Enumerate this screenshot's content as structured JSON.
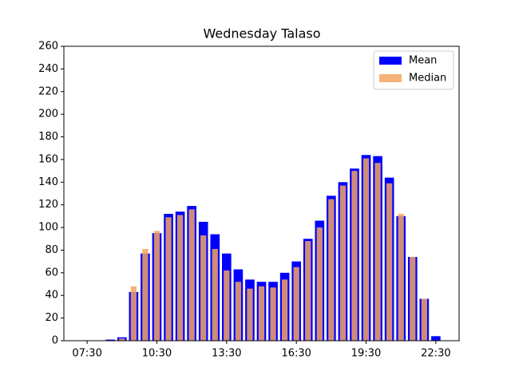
{
  "chart_data": {
    "type": "bar",
    "title": "Wednesday Talaso",
    "categories": [
      "07:30",
      null,
      null,
      null,
      null,
      null,
      "10:30",
      null,
      null,
      null,
      null,
      null,
      "13:30",
      null,
      null,
      null,
      null,
      null,
      "16:30",
      null,
      null,
      null,
      null,
      null,
      "19:30",
      null,
      null,
      null,
      null,
      null,
      "22:30"
    ],
    "series": [
      {
        "name": "Mean",
        "color": "#0000ff",
        "values": [
          0,
          0,
          1,
          3,
          43,
          77,
          95,
          112,
          114,
          119,
          105,
          94,
          77,
          63,
          54,
          52,
          52,
          60,
          70,
          90,
          106,
          128,
          140,
          152,
          164,
          163,
          144,
          110,
          74,
          37,
          4
        ]
      },
      {
        "name": "Median",
        "color": "#f4a460",
        "values": [
          0,
          0,
          0,
          2,
          48,
          81,
          97,
          109,
          111,
          116,
          93,
          81,
          62,
          52,
          46,
          48,
          47,
          54,
          65,
          88,
          100,
          125,
          137,
          150,
          161,
          157,
          139,
          112,
          74,
          37,
          0
        ]
      }
    ],
    "ylim": [
      0,
      260
    ],
    "yticks": [
      0,
      20,
      40,
      60,
      80,
      100,
      120,
      140,
      160,
      180,
      200,
      220,
      240,
      260
    ],
    "legend": "upper right"
  }
}
